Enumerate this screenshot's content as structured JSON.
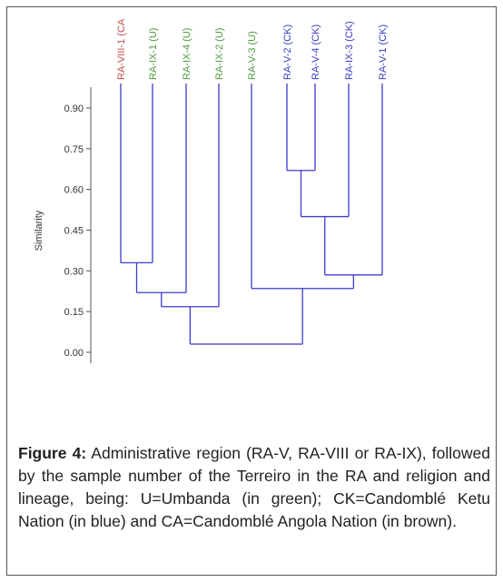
{
  "chart_data": {
    "type": "dendrogram",
    "ylabel": "Similarity",
    "yticks": [
      "0.90",
      "0.75",
      "0.60",
      "0.45",
      "0.30",
      "0.15",
      "0.00"
    ],
    "ylim": [
      0,
      0.9
    ],
    "leaves": [
      {
        "label": "RA-VIII-1 (CA",
        "group": "CA"
      },
      {
        "label": "RA-IX-1 (U)",
        "group": "U"
      },
      {
        "label": "RA-IX-4 (U)",
        "group": "U"
      },
      {
        "label": "RA-IX-2 (U)",
        "group": "U"
      },
      {
        "label": "RA-V-3 (U)",
        "group": "U"
      },
      {
        "label": "RA-V-2 (CK)",
        "group": "CK"
      },
      {
        "label": "RA-V-4 (CK)",
        "group": "CK"
      },
      {
        "label": "RA-IX-3 (CK)",
        "group": "CK"
      },
      {
        "label": "RA-V-1 (CK)",
        "group": "CK"
      }
    ],
    "merges": [
      {
        "left": 5,
        "right": 6,
        "similarity": 0.67
      },
      {
        "left": 0,
        "right": 1,
        "similarity": 0.33
      },
      {
        "left": 9,
        "right": 7,
        "similarity": 0.5
      },
      {
        "left": 11,
        "right": 8,
        "similarity": 0.285
      },
      {
        "left": 4,
        "right": 12,
        "similarity": 0.235
      },
      {
        "left": 10,
        "right": 2,
        "similarity": 0.22
      },
      {
        "left": 14,
        "right": 3,
        "similarity": 0.168
      },
      {
        "left": 15,
        "right": 13,
        "similarity": 0.03
      }
    ],
    "colors": {
      "CA": "#c0504d",
      "U": "#4e9a3c",
      "CK": "#3a3fc4",
      "links": "#3c3ccc"
    }
  },
  "caption": {
    "prefix": "Figure 4:",
    "text": " Administrative region (RA-V, RA-VIII or RA-IX), followed by the sample number of the Terreiro in the RA and religion and lineage, being: U=Umbanda (in green); CK=Candomblé Ketu Nation (in blue) and CA=Candomblé Angola Nation (in brown)."
  }
}
